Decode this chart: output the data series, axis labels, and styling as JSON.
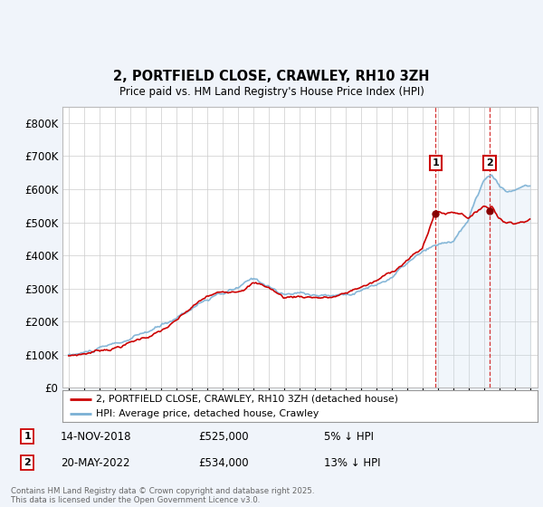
{
  "title_line1": "2, PORTFIELD CLOSE, CRAWLEY, RH10 3ZH",
  "title_line2": "Price paid vs. HM Land Registry's House Price Index (HPI)",
  "yticks": [
    0,
    100000,
    200000,
    300000,
    400000,
    500000,
    600000,
    700000,
    800000
  ],
  "ytick_labels": [
    "£0",
    "£100K",
    "£200K",
    "£300K",
    "£400K",
    "£500K",
    "£600K",
    "£700K",
    "£800K"
  ],
  "ylim": [
    0,
    850000
  ],
  "hpi_color": "#7ab0d4",
  "hpi_fill_color": "#c8dff0",
  "price_color": "#cc0000",
  "vline_color": "#cc0000",
  "sale1_x": 2018.875,
  "sale1_y": 525000,
  "sale2_x": 2022.375,
  "sale2_y": 534000,
  "sale1_date": "14-NOV-2018",
  "sale1_price": 525000,
  "sale1_pct": "5% ↓ HPI",
  "sale2_date": "20-MAY-2022",
  "sale2_price": 534000,
  "sale2_pct": "13% ↓ HPI",
  "legend_label1": "2, PORTFIELD CLOSE, CRAWLEY, RH10 3ZH (detached house)",
  "legend_label2": "HPI: Average price, detached house, Crawley",
  "footer": "Contains HM Land Registry data © Crown copyright and database right 2025.\nThis data is licensed under the Open Government Licence v3.0.",
  "bg_color": "#f0f4fa",
  "plot_bg": "#ffffff",
  "grid_color": "#cccccc",
  "xlim_left": 1994.6,
  "xlim_right": 2025.5
}
